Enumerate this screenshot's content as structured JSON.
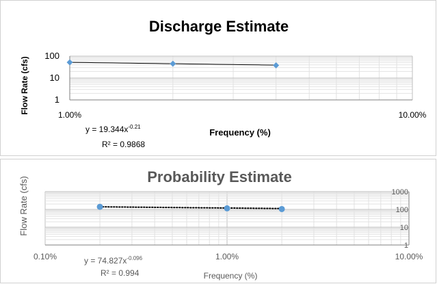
{
  "chart_data": [
    {
      "type": "scatter",
      "title": "Discharge Estimate",
      "xlabel": "Frequency (%)",
      "ylabel": "Flow Rate (cfs)",
      "x_scale": "log",
      "y_scale": "log",
      "xlim": [
        0.01,
        0.1
      ],
      "ylim": [
        1,
        100
      ],
      "x_tick_labels": [
        "1.00%",
        "10.00%"
      ],
      "y_tick_labels": [
        "1",
        "10",
        "100"
      ],
      "grid": true,
      "legend": "none",
      "point_color": "#5b9bd5",
      "series": [
        {
          "x": [
            0.01,
            0.02,
            0.04
          ],
          "y": [
            52,
            45,
            38
          ]
        }
      ],
      "trendline": {
        "type": "power",
        "a": 19.344,
        "b": -0.21,
        "style": "solid",
        "color": "#000000"
      },
      "equation": {
        "base": "y = 19.344x",
        "exponent": "-0.21"
      },
      "r_squared": {
        "label": "R² = 0.9868"
      }
    },
    {
      "type": "scatter",
      "title": "Probability Estimate",
      "xlabel": "Frequency (%)",
      "ylabel": "Flow Rate (cfs)",
      "x_scale": "log",
      "y_scale": "log",
      "xlim": [
        0.001,
        0.1
      ],
      "ylim": [
        1,
        1000
      ],
      "x_tick_labels": [
        "0.10%",
        "1.00%",
        "10.00%"
      ],
      "y_tick_labels": [
        "1",
        "10",
        "100",
        "1000"
      ],
      "grid": true,
      "legend": "none",
      "point_color": "#5b9bd5",
      "series": [
        {
          "x": [
            0.002,
            0.01,
            0.02
          ],
          "y": [
            140,
            115,
            105
          ]
        }
      ],
      "trendline": {
        "type": "power",
        "a": 74.827,
        "b": -0.096,
        "style": "dotted",
        "color": "#000000"
      },
      "equation": {
        "base": "y = 74.827x",
        "exponent": "-0.096"
      },
      "r_squared": {
        "label": "R² = 0.994"
      }
    }
  ]
}
